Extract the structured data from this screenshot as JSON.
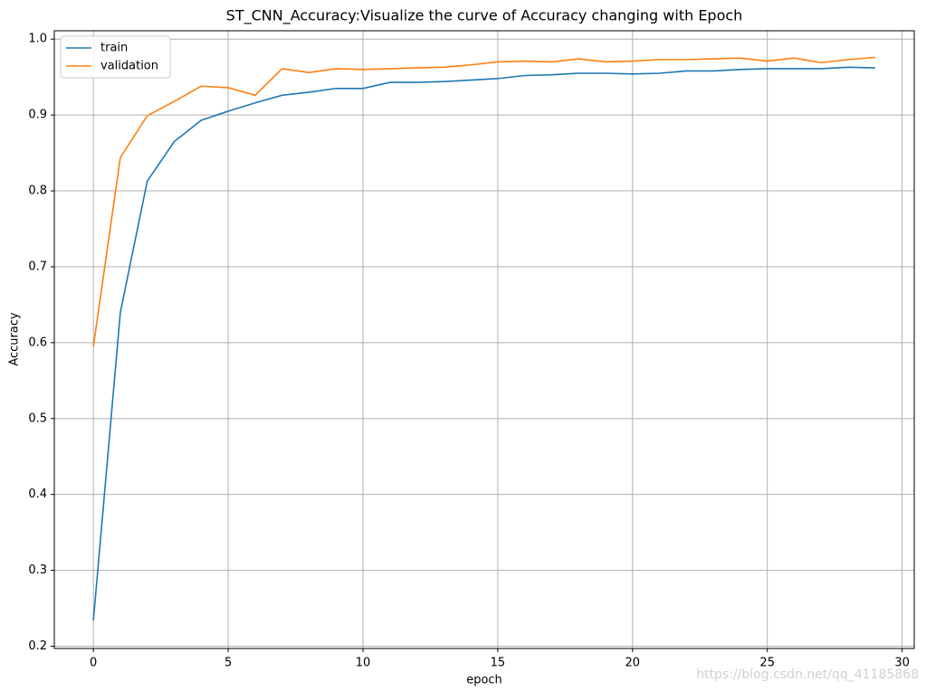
{
  "chart_data": {
    "type": "line",
    "title": "ST_CNN_Accuracy:Visualize the curve of Accuracy changing with Epoch",
    "x_label": "epoch",
    "y_label": "Accuracy",
    "x": [
      0,
      1,
      2,
      3,
      4,
      5,
      6,
      7,
      8,
      9,
      10,
      11,
      12,
      13,
      14,
      15,
      16,
      17,
      18,
      19,
      20,
      21,
      22,
      23,
      24,
      25,
      26,
      27,
      28,
      29
    ],
    "series": [
      {
        "name": "train",
        "color": "#1f77b4",
        "values": [
          0.234,
          0.64,
          0.813,
          0.865,
          0.893,
          0.905,
          0.916,
          0.926,
          0.93,
          0.935,
          0.935,
          0.943,
          0.943,
          0.944,
          0.946,
          0.948,
          0.952,
          0.953,
          0.955,
          0.955,
          0.954,
          0.955,
          0.958,
          0.958,
          0.96,
          0.961,
          0.961,
          0.961,
          0.963,
          0.962
        ]
      },
      {
        "name": "validation",
        "color": "#ff7f0e",
        "values": [
          0.595,
          0.844,
          0.899,
          0.918,
          0.938,
          0.936,
          0.926,
          0.961,
          0.956,
          0.961,
          0.96,
          0.961,
          0.962,
          0.963,
          0.966,
          0.97,
          0.971,
          0.97,
          0.974,
          0.97,
          0.971,
          0.973,
          0.973,
          0.974,
          0.975,
          0.971,
          0.975,
          0.969,
          0.973,
          0.976
        ]
      }
    ],
    "xlim": [
      -1.45,
      30.45
    ],
    "xticks": [
      0,
      5,
      10,
      15,
      20,
      25,
      30
    ],
    "ylim": [
      0.197,
      1.011
    ],
    "yticks": [
      0.2,
      0.3,
      0.4,
      0.5,
      0.6,
      0.7,
      0.8,
      0.9,
      {
        "value": 1,
        "label": "1.0"
      }
    ],
    "grid": true,
    "legend": "upper-left",
    "watermark": "https://blog.csdn.net/qq_41185868"
  }
}
